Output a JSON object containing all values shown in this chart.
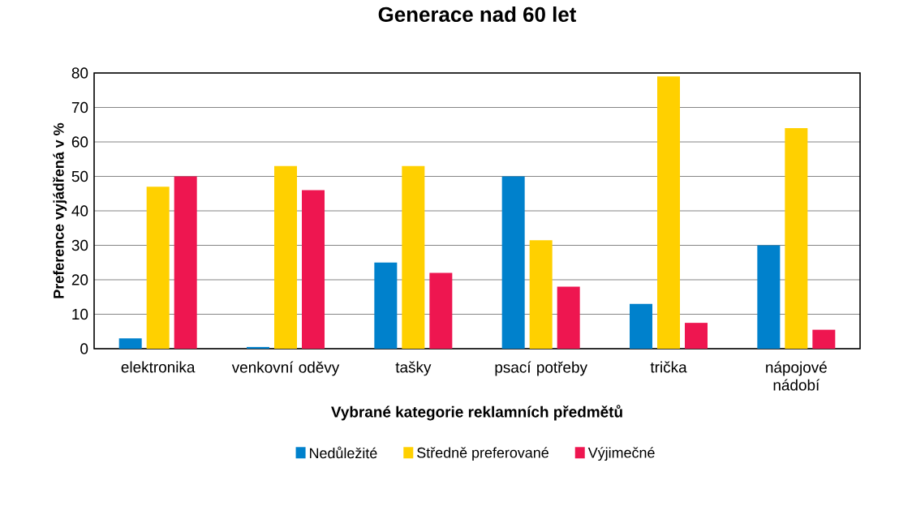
{
  "chart_data": {
    "type": "bar",
    "title": "Generace nad 60 let",
    "xlabel": "Vybrané kategorie reklamních předmětů",
    "ylabel": "Preference vyjádřená  v %",
    "categories": [
      "elektronika",
      "venkovní oděvy",
      "tašky",
      "psací potřeby",
      "trička",
      "nápojové nádobí"
    ],
    "series": [
      {
        "name": "Nedůležité",
        "color": "#0081cc",
        "values": [
          3,
          0.5,
          25,
          50,
          13,
          30
        ]
      },
      {
        "name": "Středně preferované",
        "color": "#ffd000",
        "values": [
          47,
          53,
          53,
          31.5,
          79,
          64
        ]
      },
      {
        "name": "Výjimečné",
        "color": "#ee1650",
        "values": [
          50,
          46,
          22,
          18,
          7.5,
          5.5
        ]
      }
    ],
    "ylim": [
      0,
      80
    ],
    "yticks": [
      0,
      10,
      20,
      30,
      40,
      50,
      60,
      70,
      80
    ],
    "grid": "y",
    "legend": "bottom"
  }
}
